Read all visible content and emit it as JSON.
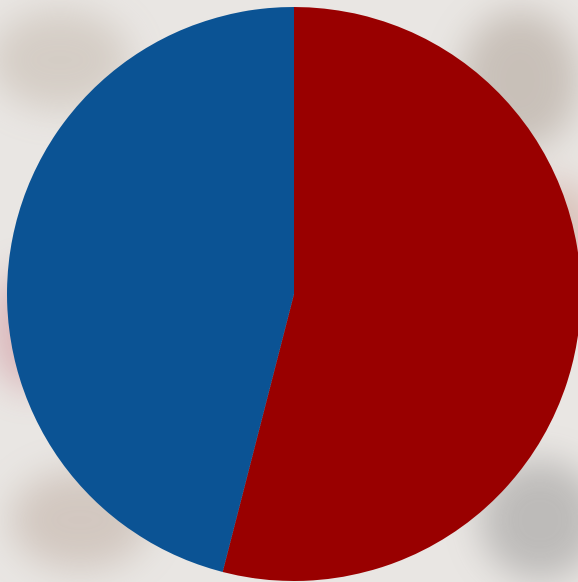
{
  "chart_data": {
    "type": "pie",
    "values": [
      54,
      46
    ],
    "colors": [
      "#990000",
      "#0b5394"
    ]
  }
}
